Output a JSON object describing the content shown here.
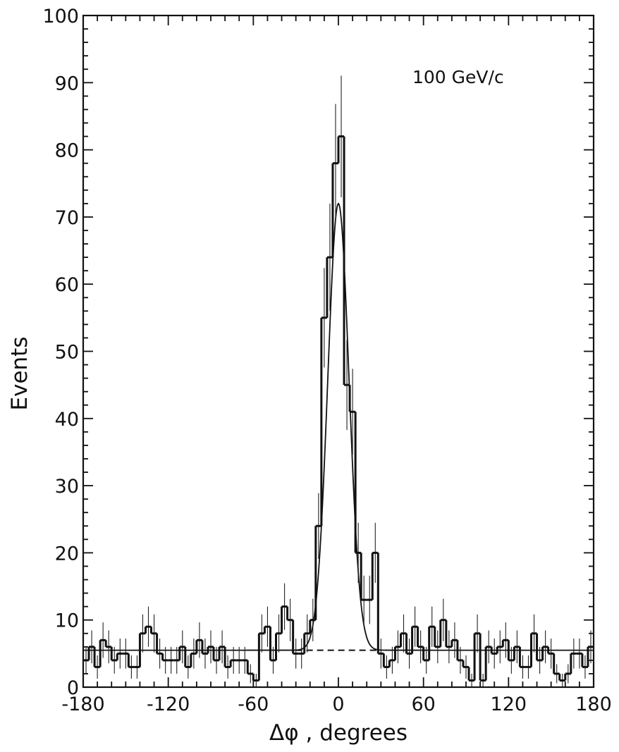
{
  "chart_data": {
    "type": "bar",
    "xlabel": "Δφ , degrees",
    "ylabel": "Events",
    "annotation": "100 GeV/c",
    "xlim": [
      -180,
      180
    ],
    "ylim": [
      0,
      100
    ],
    "x_ticks": [
      "-180",
      "-120",
      "-60",
      "0",
      "60",
      "120",
      "180"
    ],
    "y_ticks": [
      "0",
      "10",
      "20",
      "30",
      "40",
      "50",
      "60",
      "70",
      "80",
      "90",
      "100"
    ],
    "bin_width": 4,
    "bin_starts": [
      -180,
      -176,
      -172,
      -168,
      -164,
      -160,
      -156,
      -152,
      -148,
      -144,
      -140,
      -136,
      -132,
      -128,
      -124,
      -120,
      -116,
      -112,
      -108,
      -104,
      -100,
      -96,
      -92,
      -88,
      -84,
      -80,
      -76,
      -72,
      -68,
      -64,
      -60,
      -56,
      -52,
      -48,
      -44,
      -40,
      -36,
      -32,
      -28,
      -24,
      -20,
      -16,
      -12,
      -8,
      -4,
      0,
      4,
      8,
      12,
      16,
      20,
      24,
      28,
      32,
      36,
      40,
      44,
      48,
      52,
      56,
      60,
      64,
      68,
      72,
      76,
      80,
      84,
      88,
      92,
      96,
      100,
      104,
      108,
      112,
      116,
      120,
      124,
      128,
      132,
      136,
      140,
      144,
      148,
      152,
      156,
      160,
      164,
      168,
      172,
      176
    ],
    "values": [
      4,
      6,
      3,
      7,
      6,
      4,
      5,
      5,
      3,
      3,
      8,
      9,
      8,
      5,
      4,
      4,
      4,
      6,
      3,
      5,
      7,
      5,
      6,
      4,
      6,
      3,
      4,
      4,
      4,
      2,
      1,
      8,
      9,
      4,
      8,
      12,
      10,
      5,
      5,
      8,
      10,
      24,
      55,
      64,
      78,
      82,
      45,
      41,
      20,
      13,
      13,
      20,
      5,
      3,
      4,
      6,
      8,
      5,
      9,
      6,
      4,
      9,
      6,
      10,
      6,
      7,
      4,
      3,
      1,
      8,
      1,
      6,
      5,
      6,
      7,
      4,
      6,
      3,
      3,
      8,
      4,
      6,
      5,
      2,
      1,
      2,
      5,
      5,
      3,
      6
    ],
    "errors_plotted": true,
    "fit_curve": {
      "type": "gaussian_plus_constant",
      "peak": 72,
      "center": 0,
      "sigma_deg": 7.5,
      "background": 5.5
    },
    "background_level": 5.5,
    "grid": false
  }
}
